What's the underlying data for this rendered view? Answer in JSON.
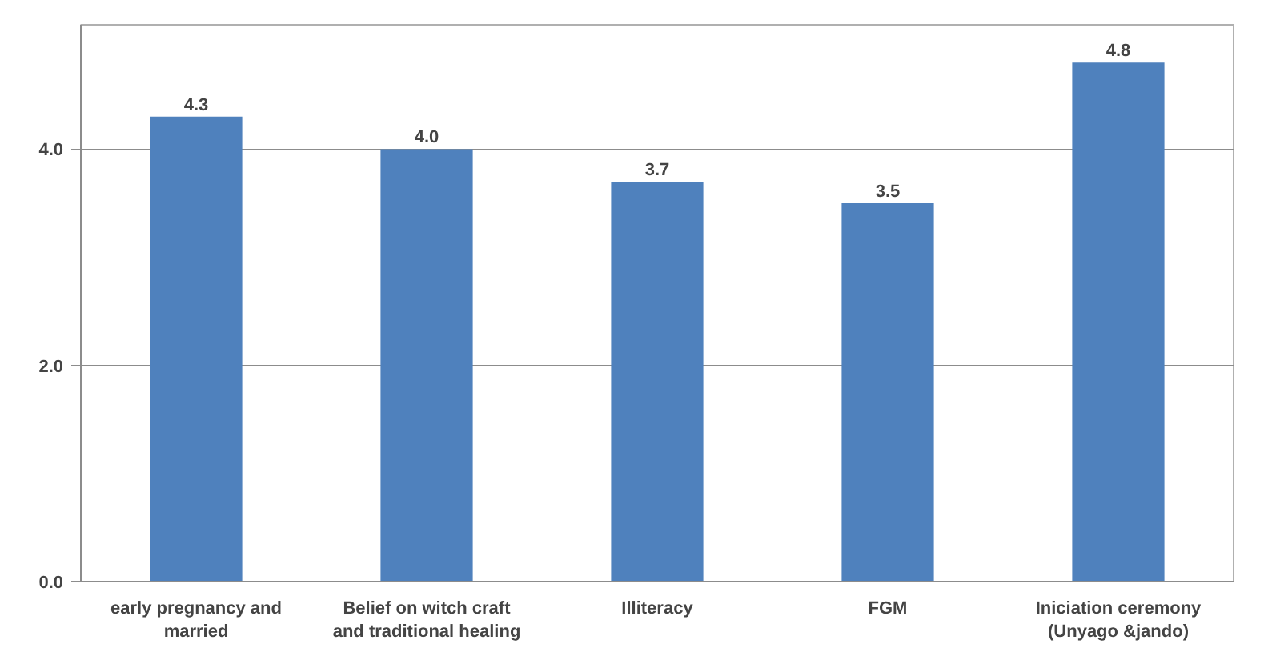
{
  "chart_data": {
    "type": "bar",
    "categories": [
      "early pregnancy and married",
      "Belief on witch craft and traditional healing",
      "Illiteracy",
      "FGM",
      "Iniciation ceremony (Unyago &jando)"
    ],
    "values": [
      4.3,
      4.0,
      3.7,
      3.5,
      4.8
    ],
    "color": "#4f81bd",
    "ylim": [
      0,
      5.15
    ],
    "yticks": [
      {
        "value": 0,
        "label": "0.0"
      },
      {
        "value": 2,
        "label": "2.0"
      },
      {
        "value": 4,
        "label": "4.0"
      }
    ],
    "grid": "y",
    "value_labels": [
      "4.3",
      "4.0",
      "3.7",
      "3.5",
      "4.8"
    ]
  }
}
